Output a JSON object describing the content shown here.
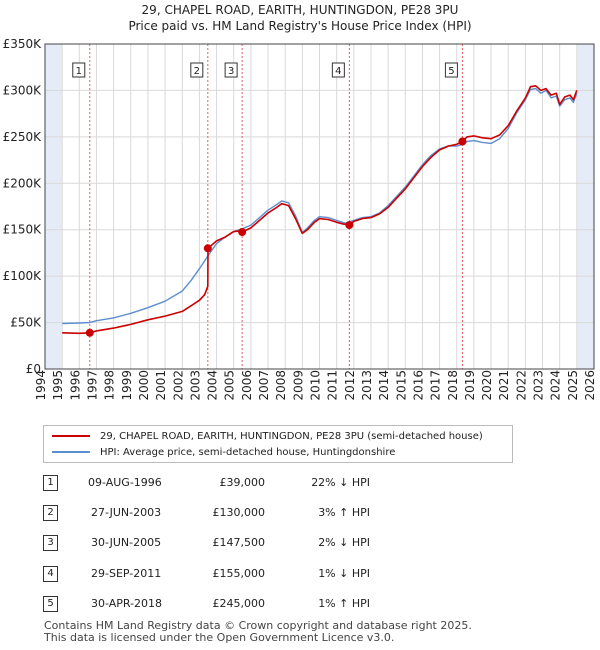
{
  "title_line1": "29, CHAPEL ROAD, EARITH, HUNTINGDON, PE28 3PU",
  "title_line2": "Price paid vs. HM Land Registry's House Price Index (HPI)",
  "chart_data": {
    "type": "line",
    "xlim": [
      1994,
      2026
    ],
    "ylim": [
      0,
      350000
    ],
    "y_ticks": [
      0,
      50000,
      100000,
      150000,
      200000,
      250000,
      300000,
      350000
    ],
    "y_tick_labels": [
      "£0",
      "£50K",
      "£100K",
      "£150K",
      "£200K",
      "£250K",
      "£300K",
      "£350K"
    ],
    "x_ticks": [
      1994,
      1995,
      1996,
      1997,
      1998,
      1999,
      2000,
      2001,
      2002,
      2003,
      2004,
      2005,
      2006,
      2007,
      2008,
      2009,
      2010,
      2011,
      2012,
      2013,
      2014,
      2015,
      2016,
      2017,
      2018,
      2019,
      2020,
      2021,
      2022,
      2023,
      2024,
      2025,
      2026
    ],
    "x_tick_labels": [
      "1994",
      "1995",
      "1996",
      "1997",
      "1998",
      "1999",
      "2000",
      "2001",
      "2002",
      "2003",
      "2004",
      "2005",
      "2006",
      "2007",
      "2008",
      "2009",
      "2010",
      "2011",
      "2012",
      "2013",
      "2014",
      "2015",
      "2016",
      "2017",
      "2018",
      "2019",
      "2020",
      "2021",
      "2022",
      "2023",
      "2024",
      "2025",
      "2026"
    ],
    "data_range": [
      1995.0,
      2025.0
    ],
    "series": [
      {
        "name": "29, CHAPEL ROAD, EARITH, HUNTINGDON, PE28 3PU (semi-detached house)",
        "color": "#cc0000",
        "x": [
          1995.0,
          1996.0,
          1996.6,
          1996.61,
          1997,
          1998,
          1999,
          2000,
          2001,
          2002,
          2002.5,
          2003.0,
          2003.3,
          2003.49,
          2003.5,
          2004,
          2004.5,
          2005.0,
          2005.3,
          2005.49,
          2005.5,
          2006,
          2006.5,
          2007,
          2007.5,
          2007.8,
          2008.2,
          2008.6,
          2009.0,
          2009.3,
          2009.7,
          2010.0,
          2010.5,
          2011.0,
          2011.4,
          2011.74,
          2011.75,
          2012,
          2012.5,
          2013,
          2013.5,
          2014,
          2014.5,
          2015,
          2015.5,
          2016,
          2016.5,
          2017,
          2017.5,
          2018.0,
          2018.32,
          2018.33,
          2018.6,
          2019,
          2019.5,
          2020,
          2020.5,
          2021,
          2021.5,
          2022,
          2022.3,
          2022.6,
          2022.9,
          2023.2,
          2023.5,
          2023.8,
          2024.0,
          2024.3,
          2024.6,
          2024.8,
          2025.0
        ],
        "y": [
          39000,
          38500,
          39000,
          39000,
          41000,
          44000,
          48000,
          53000,
          57000,
          62000,
          68000,
          74000,
          80000,
          89000,
          130000,
          138000,
          142000,
          148000,
          148500,
          147500,
          147500,
          152000,
          160000,
          168000,
          174000,
          178000,
          176000,
          162000,
          146000,
          150000,
          158000,
          162000,
          161000,
          158000,
          156000,
          155000,
          155000,
          159000,
          162000,
          163000,
          167000,
          174000,
          184000,
          194000,
          206000,
          218000,
          228000,
          236000,
          240000,
          242000,
          245000,
          245000,
          250000,
          251000,
          249000,
          248000,
          252000,
          262000,
          278000,
          292000,
          304000,
          305000,
          300000,
          302000,
          295000,
          297000,
          285000,
          293000,
          295000,
          290000,
          300000
        ]
      },
      {
        "name": "HPI: Average price, semi-detached house, Huntingdonshire",
        "color": "#5b8fd0",
        "x": [
          1995.0,
          1996.0,
          1996.6,
          1997,
          1998,
          1999,
          2000,
          2001,
          2002,
          2002.5,
          2003.0,
          2003.5,
          2004,
          2004.5,
          2005.0,
          2005.5,
          2006,
          2006.5,
          2007,
          2007.5,
          2007.8,
          2008.2,
          2008.6,
          2009.0,
          2009.3,
          2009.7,
          2010.0,
          2010.5,
          2011.0,
          2011.5,
          2012,
          2012.5,
          2013,
          2013.5,
          2014,
          2014.5,
          2015,
          2015.5,
          2016,
          2016.5,
          2017,
          2017.5,
          2018.0,
          2018.33,
          2018.6,
          2019,
          2019.5,
          2020,
          2020.5,
          2021,
          2021.5,
          2022,
          2022.3,
          2022.6,
          2022.9,
          2023.2,
          2023.5,
          2023.8,
          2024.0,
          2024.3,
          2024.6,
          2024.8,
          2025.0
        ],
        "y": [
          49000,
          49500,
          50000,
          52000,
          55000,
          60000,
          66000,
          73000,
          84000,
          95000,
          108000,
          122000,
          135000,
          142000,
          148000,
          151000,
          155000,
          163000,
          171000,
          177000,
          181000,
          179000,
          165000,
          147000,
          152000,
          160000,
          164000,
          163000,
          160000,
          157000,
          160000,
          163000,
          164000,
          168000,
          176000,
          186000,
          196000,
          208000,
          220000,
          230000,
          237000,
          240000,
          240000,
          242000,
          245000,
          246000,
          244000,
          243000,
          248000,
          259000,
          276000,
          290000,
          301000,
          302000,
          297000,
          300000,
          292000,
          294000,
          283000,
          290000,
          292000,
          287000,
          297000
        ]
      }
    ],
    "transactions": [
      {
        "id": "1",
        "date": "09-AUG-1996",
        "price": "£39,000",
        "hpi": "22% ↓ HPI",
        "x": 1996.61,
        "y": 39000
      },
      {
        "id": "2",
        "date": "27-JUN-2003",
        "price": "£130,000",
        "hpi": "3% ↑ HPI",
        "x": 2003.49,
        "y": 130000
      },
      {
        "id": "3",
        "date": "30-JUN-2005",
        "price": "£147,500",
        "hpi": "2% ↓ HPI",
        "x": 2005.49,
        "y": 147500
      },
      {
        "id": "4",
        "date": "29-SEP-2011",
        "price": "£155,000",
        "hpi": "1% ↓ HPI",
        "x": 2011.74,
        "y": 155000
      },
      {
        "id": "5",
        "date": "30-APR-2018",
        "price": "£245,000",
        "hpi": "1% ↑ HPI",
        "x": 2018.33,
        "y": 245000
      }
    ],
    "colors": {
      "grid": "#d9d9d9",
      "bg": "#ffffff",
      "shade": "#e6ecf7",
      "marker_line": "#e06060"
    }
  },
  "footer_line1": "Contains HM Land Registry data © Crown copyright and database right 2025.",
  "footer_line2": "This data is licensed under the Open Government Licence v3.0."
}
